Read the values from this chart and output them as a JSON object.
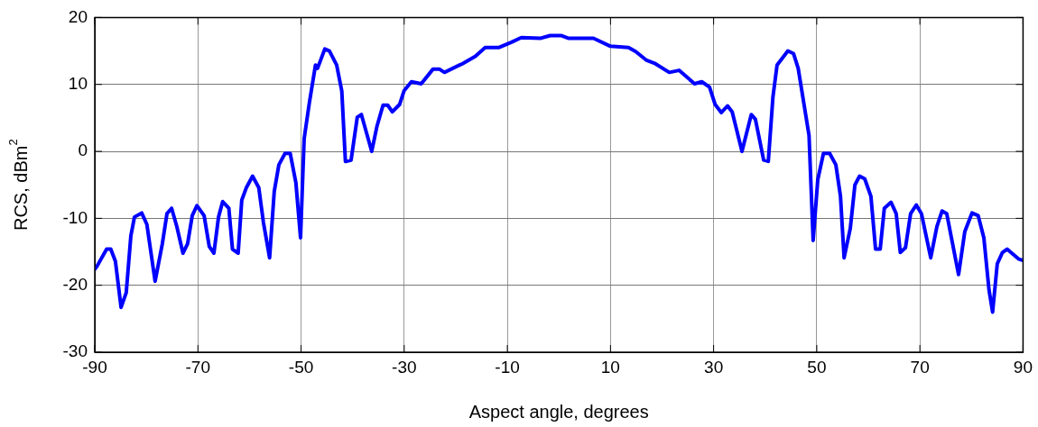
{
  "chart_data": {
    "type": "line",
    "xlabel": "Aspect angle, degrees",
    "ylabel": "RCS, dBm$^{2}$",
    "xlim": [
      -90,
      90
    ],
    "xticks": [
      -90,
      -70,
      -50,
      -30,
      -10,
      10,
      30,
      50,
      70,
      90
    ],
    "ylim": [
      -30,
      20
    ],
    "yticks": [
      -30,
      -20,
      -10,
      0,
      10,
      20
    ],
    "grid": true,
    "legend": false,
    "marker": "none",
    "line_style": "solid",
    "series": [
      {
        "color": "#0000ff",
        "x": [
          -90,
          -89.6,
          -87.7,
          -86.9,
          -86,
          -84.9,
          -83.9,
          -83,
          -82.3,
          -80.9,
          -79.9,
          -78.3,
          -76.9,
          -76,
          -75.1,
          -74.1,
          -72.9,
          -72,
          -71.1,
          -70.2,
          -68.8,
          -67.8,
          -66.9,
          -66,
          -65.2,
          -64,
          -63.3,
          -62.2,
          -61.5,
          -60.6,
          -59.4,
          -58.2,
          -57.3,
          -56.1,
          -55.2,
          -54.3,
          -53.1,
          -52.1,
          -51,
          -50.1,
          -49.4,
          -48.4,
          -47.2,
          -46.8,
          -45.4,
          -44.5,
          -43.1,
          -42.1,
          -41.4,
          -40.3,
          -39.1,
          -38.3,
          -36.3,
          -35.3,
          -34.1,
          -33.2,
          -32.3,
          -30.9,
          -30,
          -28.6,
          -26.7,
          -24.4,
          -23.2,
          -22.2,
          -18.7,
          -16.2,
          -14.3,
          -11.7,
          -9.2,
          -7.3,
          -3.5,
          -1.7,
          0.4,
          1.8,
          6.7,
          10,
          13.5,
          14.9,
          17,
          18.7,
          21.4,
          23.3,
          26.3,
          27.7,
          29.2,
          30.3,
          31.5,
          32.7,
          33.6,
          35.5,
          37.3,
          38.1,
          39.7,
          40.6,
          41.5,
          42.3,
          44.4,
          45.5,
          46.4,
          48.5,
          49.3,
          50.2,
          51.3,
          52.5,
          53.7,
          54.6,
          55.3,
          56.5,
          57.4,
          58.3,
          59.3,
          60.5,
          61.4,
          62.3,
          63.1,
          64.4,
          65.4,
          66.2,
          67.2,
          68.2,
          69.3,
          70.3,
          72.1,
          73.3,
          74.3,
          75.2,
          77.5,
          78.7,
          80.1,
          81.3,
          82.4,
          83.4,
          84.1,
          85,
          86,
          86.9,
          89.2,
          90
        ],
        "values": [
          -17.6,
          -17.2,
          -14.6,
          -14.6,
          -16.4,
          -23.3,
          -21.1,
          -12.6,
          -9.8,
          -9.2,
          -10.9,
          -19.4,
          -13.8,
          -9.3,
          -8.5,
          -11.2,
          -15.2,
          -13.8,
          -9.6,
          -8.1,
          -9.6,
          -14.2,
          -15.2,
          -9.8,
          -7.5,
          -8.5,
          -14.6,
          -15.2,
          -7.3,
          -5.4,
          -3.7,
          -5.4,
          -10.6,
          -15.9,
          -6,
          -2,
          -0.3,
          -0.3,
          -4.7,
          -12.9,
          1.9,
          7.2,
          12.9,
          12.4,
          15.3,
          15,
          12.9,
          9,
          -1.5,
          -1.3,
          5.1,
          5.5,
          0,
          3.7,
          6.9,
          6.9,
          5.9,
          7,
          9.1,
          10.4,
          10.1,
          12.3,
          12.3,
          11.8,
          13.1,
          14.2,
          15.5,
          15.5,
          16.3,
          17,
          16.9,
          17.3,
          17.3,
          16.9,
          16.9,
          15.7,
          15.5,
          14.9,
          13.6,
          13.1,
          11.8,
          12.1,
          10.1,
          10.4,
          9.6,
          7,
          5.8,
          6.8,
          5.9,
          0,
          5.5,
          4.8,
          -1.3,
          -1.5,
          8.1,
          12.9,
          15,
          14.6,
          12.4,
          2.4,
          -13.3,
          -4.2,
          -0.3,
          -0.3,
          -2,
          -6.7,
          -15.9,
          -11.5,
          -5,
          -3.7,
          -4.1,
          -6.7,
          -14.6,
          -14.6,
          -8.5,
          -7.6,
          -9.3,
          -15.1,
          -14.4,
          -9.3,
          -8,
          -9.3,
          -15.9,
          -11.2,
          -8.9,
          -9.3,
          -18.4,
          -12,
          -9.2,
          -9.6,
          -12.9,
          -20.7,
          -24,
          -16.8,
          -15.1,
          -14.6,
          -16.1,
          -16.3
        ]
      }
    ]
  }
}
